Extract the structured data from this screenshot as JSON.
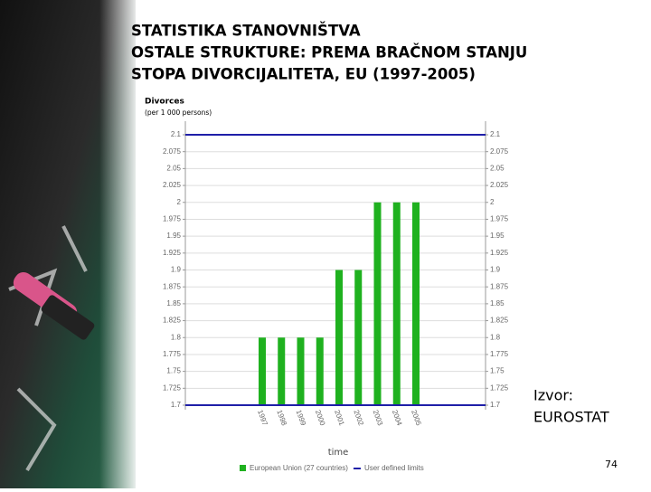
{
  "slide": {
    "title_lines": [
      "STATISTIKA STANOVNIŠTVA",
      "OSTALE STRUKTURE: PREMA BRAČNOM STANJU",
      "STOPA DIVORCIJALITETA, EU (1997-2005)"
    ],
    "source_label": "Izvor:",
    "source": "EUROSTAT",
    "page_number": "74"
  },
  "chart_data": {
    "type": "bar",
    "y_title_lines": [
      "Divorces",
      "(per 1 000 persons)"
    ],
    "x_title": "time",
    "categories": [
      "1997",
      "1998",
      "1999",
      "2000",
      "2001",
      "2002",
      "2003",
      "2004",
      "2005"
    ],
    "series": [
      {
        "name": "European Union (27 countries)",
        "color": "#1fb11f",
        "values": [
          1.8,
          1.8,
          1.8,
          1.8,
          1.9,
          1.9,
          2,
          2,
          2
        ]
      }
    ],
    "reference_lines": {
      "name": "User defined limits",
      "color": "#1f1fa8",
      "values": [
        2.1,
        1.7
      ]
    },
    "ylim": [
      1.7,
      2.1
    ],
    "yticks": [
      2.1,
      2.075,
      2.05,
      2.025,
      2,
      1.975,
      1.95,
      1.925,
      1.9,
      1.875,
      1.85,
      1.825,
      1.8,
      1.775,
      1.75,
      1.725,
      1.7
    ],
    "y2lim": [
      1.7,
      2.1
    ],
    "y2ticks": [
      2.1,
      2.075,
      2.05,
      2.025,
      2,
      1.975,
      1.95,
      1.925,
      1.9,
      1.875,
      1.85,
      1.825,
      1.8,
      1.775,
      1.75,
      1.725,
      1.7
    ],
    "grid": true
  }
}
